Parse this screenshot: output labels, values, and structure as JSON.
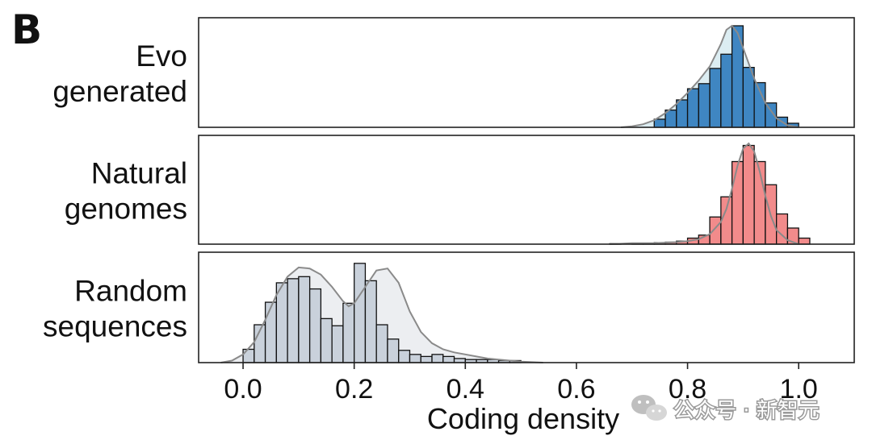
{
  "panel_letter": "B",
  "watermark": "公众号 · 新智元",
  "chart_data": {
    "type": "histogram",
    "xlabel": "Coding density",
    "xlim": [
      -0.08,
      1.1
    ],
    "xticks": [
      0.0,
      0.2,
      0.4,
      0.6,
      0.8,
      1.0
    ],
    "xtick_labels": [
      "0.0",
      "0.2",
      "0.4",
      "0.6",
      "0.8",
      "1.0"
    ],
    "bin_width": 0.02,
    "series": [
      {
        "name_lines": [
          "Evo",
          "generated"
        ],
        "bar_color": "#3f86c2",
        "kde_fill": "#dcedf2",
        "bin_start": 0.74,
        "counts": [
          0.08,
          0.17,
          0.27,
          0.38,
          0.43,
          0.58,
          0.72,
          1.0,
          0.59,
          0.44,
          0.24,
          0.1,
          0.04
        ],
        "kde": [
          [
            0.68,
            0.0
          ],
          [
            0.7,
            0.01
          ],
          [
            0.72,
            0.03
          ],
          [
            0.74,
            0.07
          ],
          [
            0.76,
            0.14
          ],
          [
            0.78,
            0.23
          ],
          [
            0.8,
            0.34
          ],
          [
            0.82,
            0.46
          ],
          [
            0.84,
            0.6
          ],
          [
            0.86,
            0.82
          ],
          [
            0.87,
            0.96
          ],
          [
            0.88,
            1.0
          ],
          [
            0.89,
            0.93
          ],
          [
            0.9,
            0.78
          ],
          [
            0.92,
            0.48
          ],
          [
            0.94,
            0.24
          ],
          [
            0.96,
            0.09
          ],
          [
            0.98,
            0.02
          ],
          [
            1.0,
            0.0
          ]
        ]
      },
      {
        "name_lines": [
          "Natural",
          "genomes"
        ],
        "bar_color": "#f28b8b",
        "kde_fill": "#f8dcdc",
        "bin_start": 0.66,
        "counts": [
          0.005,
          0.0,
          0.01,
          0.01,
          0.015,
          0.02,
          0.03,
          0.06,
          0.09,
          0.27,
          0.47,
          0.82,
          0.98,
          0.82,
          0.59,
          0.3,
          0.16,
          0.06
        ],
        "kde": [
          [
            0.66,
            0.0
          ],
          [
            0.7,
            0.01
          ],
          [
            0.74,
            0.01
          ],
          [
            0.78,
            0.02
          ],
          [
            0.8,
            0.03
          ],
          [
            0.82,
            0.05
          ],
          [
            0.84,
            0.1
          ],
          [
            0.86,
            0.22
          ],
          [
            0.87,
            0.35
          ],
          [
            0.88,
            0.55
          ],
          [
            0.89,
            0.78
          ],
          [
            0.9,
            0.95
          ],
          [
            0.91,
            1.0
          ],
          [
            0.92,
            0.92
          ],
          [
            0.93,
            0.72
          ],
          [
            0.94,
            0.48
          ],
          [
            0.95,
            0.28
          ],
          [
            0.96,
            0.14
          ],
          [
            0.98,
            0.04
          ],
          [
            1.0,
            0.0
          ]
        ]
      },
      {
        "name_lines": [
          "Random",
          "sequences"
        ],
        "bar_color": "#c9d1db",
        "kde_fill": "#eceef1",
        "bin_start": 0.0,
        "counts": [
          0.13,
          0.37,
          0.59,
          0.78,
          0.82,
          0.84,
          0.72,
          0.43,
          0.36,
          0.58,
          0.97,
          0.8,
          0.37,
          0.23,
          0.12,
          0.08,
          0.06,
          0.08,
          0.06,
          0.04,
          0.03,
          0.03,
          0.03,
          0.02,
          0.02
        ],
        "kde": [
          [
            -0.04,
            0.0
          ],
          [
            -0.02,
            0.02
          ],
          [
            0.0,
            0.08
          ],
          [
            0.02,
            0.2
          ],
          [
            0.04,
            0.42
          ],
          [
            0.06,
            0.66
          ],
          [
            0.08,
            0.84
          ],
          [
            0.1,
            0.93
          ],
          [
            0.12,
            0.92
          ],
          [
            0.14,
            0.86
          ],
          [
            0.16,
            0.74
          ],
          [
            0.18,
            0.6
          ],
          [
            0.19,
            0.55
          ],
          [
            0.2,
            0.58
          ],
          [
            0.22,
            0.74
          ],
          [
            0.24,
            0.9
          ],
          [
            0.26,
            0.92
          ],
          [
            0.28,
            0.78
          ],
          [
            0.3,
            0.5
          ],
          [
            0.32,
            0.3
          ],
          [
            0.34,
            0.19
          ],
          [
            0.36,
            0.13
          ],
          [
            0.38,
            0.1
          ],
          [
            0.4,
            0.08
          ],
          [
            0.42,
            0.06
          ],
          [
            0.44,
            0.04
          ],
          [
            0.46,
            0.03
          ],
          [
            0.48,
            0.02
          ],
          [
            0.5,
            0.01
          ],
          [
            0.54,
            0.0
          ]
        ]
      }
    ]
  }
}
